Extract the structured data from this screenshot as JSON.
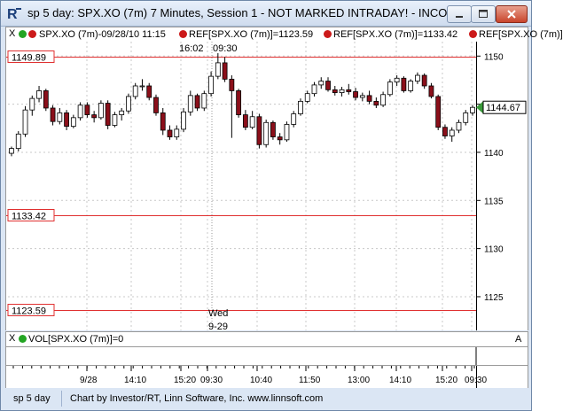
{
  "window": {
    "title": "sp 5 day: SPX.XO (7m) 7 Minutes, Session 1 - NOT MARKED INTRADAY! - INCO..."
  },
  "toolbar": {
    "close_glyph": "X",
    "item1": "SPX.XO (7m)-09/28/10 11:15",
    "item2": "REF[SPX.XO (7m)]=1123.59",
    "item3": "REF[SPX.XO (7m)]=1133.42",
    "item4": "REF[SPX.XO (7m)]"
  },
  "chart_data": {
    "type": "candlestick",
    "y_ticks": [
      "1150",
      "1145",
      "1140",
      "1135",
      "1130",
      "1125"
    ],
    "ylim": [
      1121.5,
      1151.5
    ],
    "x_ticks": [
      "9/28",
      "14:10",
      "15:20",
      "09:30",
      "10:40",
      "11:50",
      "13:00",
      "14:10",
      "15:20",
      "09:30"
    ],
    "current_price": "1144.67",
    "high_label_time": "16:02",
    "high_label_session": "09:30",
    "day_label": "Wed",
    "day_date": "9-29",
    "ref_lines": [
      {
        "label": "1149.89",
        "value": 1149.89
      },
      {
        "label": "1133.42",
        "value": 1133.42
      },
      {
        "label": "1123.59",
        "value": 1123.59
      }
    ],
    "candles": [
      [
        1139.9,
        1140.6,
        1139.6,
        1140.4
      ],
      [
        1140.4,
        1142.2,
        1140.1,
        1141.9
      ],
      [
        1141.9,
        1144.8,
        1141.6,
        1144.4
      ],
      [
        1144.4,
        1145.9,
        1143.8,
        1145.6
      ],
      [
        1145.6,
        1146.9,
        1145.2,
        1146.4
      ],
      [
        1146.4,
        1146.6,
        1144.3,
        1144.6
      ],
      [
        1144.6,
        1144.9,
        1142.8,
        1143.2
      ],
      [
        1143.2,
        1144.6,
        1142.9,
        1144.1
      ],
      [
        1144.1,
        1144.4,
        1142.3,
        1142.7
      ],
      [
        1142.7,
        1143.9,
        1142.5,
        1143.6
      ],
      [
        1143.6,
        1145.2,
        1143.3,
        1144.9
      ],
      [
        1144.9,
        1145.2,
        1143.6,
        1143.9
      ],
      [
        1143.9,
        1144.3,
        1143.1,
        1143.6
      ],
      [
        1143.6,
        1145.4,
        1143.4,
        1145.1
      ],
      [
        1145.1,
        1145.4,
        1142.4,
        1142.8
      ],
      [
        1142.8,
        1144.2,
        1142.6,
        1143.9
      ],
      [
        1143.9,
        1144.6,
        1143.3,
        1144.3
      ],
      [
        1144.3,
        1146.1,
        1144.0,
        1145.8
      ],
      [
        1145.8,
        1147.2,
        1145.5,
        1146.9
      ],
      [
        1146.9,
        1147.6,
        1146.4,
        1146.9
      ],
      [
        1146.9,
        1147.2,
        1145.4,
        1145.7
      ],
      [
        1145.7,
        1146.0,
        1143.8,
        1144.1
      ],
      [
        1144.1,
        1144.6,
        1141.8,
        1142.3
      ],
      [
        1142.3,
        1142.8,
        1141.3,
        1141.6
      ],
      [
        1141.6,
        1142.8,
        1141.3,
        1142.4
      ],
      [
        1142.4,
        1144.6,
        1142.1,
        1144.2
      ],
      [
        1144.2,
        1146.4,
        1143.8,
        1145.9
      ],
      [
        1145.9,
        1146.1,
        1144.3,
        1144.6
      ],
      [
        1144.6,
        1146.4,
        1144.3,
        1146.1
      ],
      [
        1146.1,
        1148.4,
        1145.8,
        1147.9
      ],
      [
        1147.9,
        1150.3,
        1147.6,
        1149.3
      ],
      [
        1149.3,
        1149.9,
        1147.3,
        1147.6
      ],
      [
        1147.6,
        1148.0,
        1141.5,
        1146.4
      ],
      [
        1146.4,
        1146.6,
        1143.6,
        1143.9
      ],
      [
        1143.9,
        1144.4,
        1142.3,
        1142.6
      ],
      [
        1142.6,
        1144.3,
        1142.4,
        1143.7
      ],
      [
        1143.7,
        1144.0,
        1140.4,
        1140.8
      ],
      [
        1140.8,
        1143.4,
        1140.5,
        1143.1
      ],
      [
        1143.1,
        1143.3,
        1141.3,
        1141.6
      ],
      [
        1141.6,
        1142.0,
        1140.8,
        1141.3
      ],
      [
        1141.3,
        1143.2,
        1141.1,
        1142.9
      ],
      [
        1142.9,
        1144.3,
        1142.6,
        1144.0
      ],
      [
        1144.0,
        1145.6,
        1143.8,
        1145.3
      ],
      [
        1145.3,
        1146.4,
        1145.1,
        1146.1
      ],
      [
        1146.1,
        1147.3,
        1145.8,
        1147.0
      ],
      [
        1147.0,
        1147.8,
        1146.6,
        1147.4
      ],
      [
        1147.4,
        1147.8,
        1146.3,
        1146.5
      ],
      [
        1146.5,
        1146.9,
        1145.9,
        1146.2
      ],
      [
        1146.2,
        1146.8,
        1145.8,
        1146.5
      ],
      [
        1146.5,
        1147.1,
        1146.0,
        1146.3
      ],
      [
        1146.3,
        1146.7,
        1145.4,
        1145.7
      ],
      [
        1145.7,
        1146.2,
        1145.3,
        1145.9
      ],
      [
        1145.9,
        1146.4,
        1145.0,
        1145.3
      ],
      [
        1145.3,
        1145.7,
        1144.6,
        1144.9
      ],
      [
        1144.9,
        1146.3,
        1144.7,
        1146.0
      ],
      [
        1146.0,
        1147.6,
        1145.8,
        1147.3
      ],
      [
        1147.3,
        1148.0,
        1146.9,
        1147.7
      ],
      [
        1147.7,
        1147.9,
        1146.2,
        1146.4
      ],
      [
        1146.4,
        1147.6,
        1146.2,
        1147.4
      ],
      [
        1147.4,
        1148.3,
        1147.1,
        1148.0
      ],
      [
        1148.0,
        1148.2,
        1146.6,
        1146.9
      ],
      [
        1146.9,
        1147.2,
        1145.6,
        1145.8
      ],
      [
        1145.8,
        1146.0,
        1142.3,
        1142.6
      ],
      [
        1142.6,
        1142.9,
        1141.4,
        1141.7
      ],
      [
        1141.7,
        1142.6,
        1141.1,
        1142.3
      ],
      [
        1142.3,
        1143.4,
        1142.0,
        1143.1
      ],
      [
        1143.1,
        1144.4,
        1142.8,
        1144.1
      ],
      [
        1144.1,
        1144.9,
        1143.8,
        1144.67
      ]
    ]
  },
  "volume_bar": {
    "close_glyph": "X",
    "label": "VOL[SPX.XO (7m)]=0"
  },
  "volume_axis_label": "A",
  "status": {
    "left": "sp 5 day",
    "main": "Chart by Investor/RT, Linn Software, Inc. www.linnsoft.com"
  },
  "colors": {
    "up": "#ffffff",
    "down": "#8b0f1a",
    "ref_line": "#e03030",
    "price_marker": "#3a9a3a"
  }
}
